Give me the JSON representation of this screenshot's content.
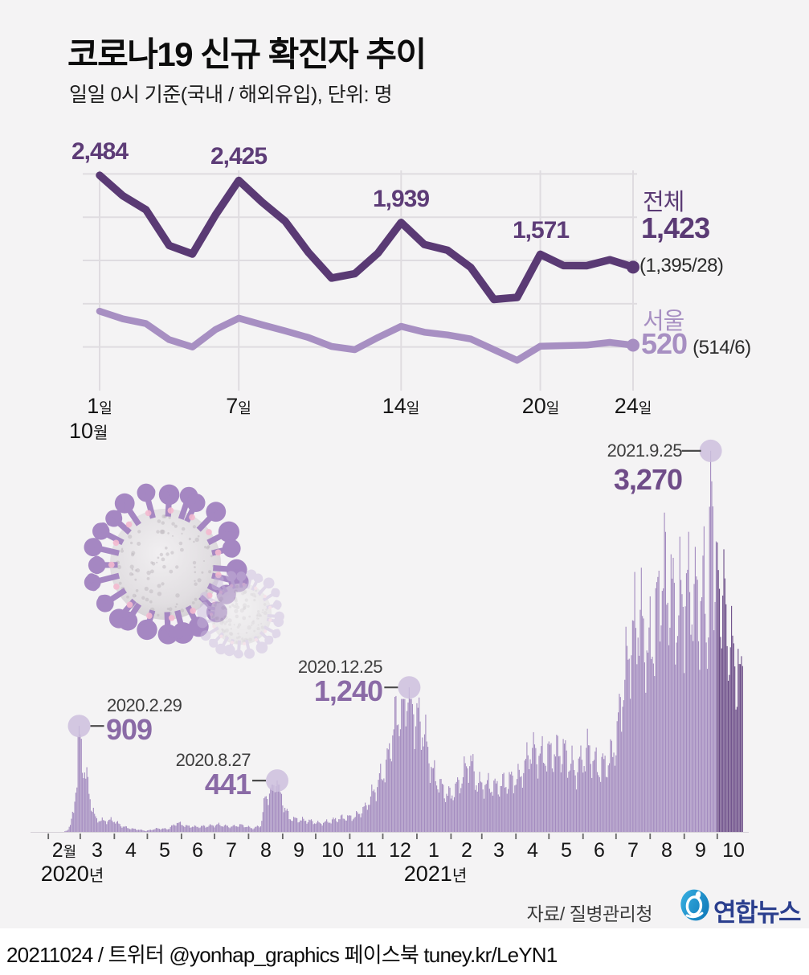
{
  "title": "코로나19 신규 확진자 추이",
  "subtitle": "일일 0시 기준(국내 / 해외유입), 단위: 명",
  "source": "자료/ 질병관리청",
  "logo_text": "연합뉴스",
  "footer": "20211024 / 트위터 @yonhap_graphics  페이스북 tuney.kr/LeYN1",
  "colors": {
    "background": "#f4f3f4",
    "total_line": "#5a3a74",
    "seoul_line": "#a78fc2",
    "peak_label": "#5d3c77",
    "bar": "#a38bbf",
    "bar_highlight": "#6b4c87",
    "grid": "#dfdce0",
    "annotation_circle": "#ccbedd",
    "annotation_number": "#8a6aa6",
    "annotation_number_dark": "#6f4c88",
    "logo_blue": "#1b9ad8",
    "logo_text_blue": "#2b3f8e"
  },
  "chart_data": [
    {
      "type": "line",
      "title": "코로나19 신규 확진자 추이 (10월 일별)",
      "month_label": "10월",
      "x": [
        1,
        2,
        3,
        4,
        5,
        6,
        7,
        8,
        9,
        10,
        11,
        12,
        13,
        14,
        15,
        16,
        17,
        18,
        19,
        20,
        21,
        22,
        23,
        24
      ],
      "x_tick_suffix": "일",
      "x_ticks": [
        {
          "day": 1,
          "label": "1",
          "suffix": "일"
        },
        {
          "day": 7,
          "label": "7",
          "suffix": "일"
        },
        {
          "day": 14,
          "label": "14",
          "suffix": "일"
        },
        {
          "day": 20,
          "label": "20",
          "suffix": "일"
        },
        {
          "day": 24,
          "label": "24",
          "suffix": "일"
        }
      ],
      "y_gridlines": [
        500,
        1000,
        1500,
        2000,
        2500
      ],
      "ylim": [
        0,
        2600
      ],
      "series": [
        {
          "name": "전체",
          "color": "#5a3a74",
          "values": [
            2484,
            2247,
            2086,
            1673,
            1575,
            2028,
            2425,
            2175,
            1953,
            1594,
            1297,
            1347,
            1584,
            1939,
            1684,
            1618,
            1420,
            1050,
            1073,
            1571,
            1441,
            1440,
            1508,
            1423
          ],
          "end_value_label": "1,423",
          "end_breakdown": "(1,395/28)"
        },
        {
          "name": "서울",
          "color": "#a78fc2",
          "values": [
            913,
            825,
            770,
            584,
            500,
            702,
            832,
            757,
            686,
            609,
            506,
            469,
            609,
            739,
            671,
            639,
            593,
            469,
            346,
            509,
            516,
            522,
            553,
            520
          ],
          "end_value_label": "520",
          "end_breakdown": "(514/6)"
        }
      ],
      "peak_labels": [
        {
          "day": 1,
          "label": "2,484"
        },
        {
          "day": 7,
          "label": "2,425"
        },
        {
          "day": 14,
          "label": "1,939"
        },
        {
          "day": 20,
          "label": "1,571"
        }
      ]
    },
    {
      "type": "bar",
      "title": "일별 신규 확진자 2020.1 ~ 2021.10 (추정 보간값 포함)",
      "start_date": "2020-01-18",
      "end_date": "2021-10-24",
      "total_days": 646,
      "highlight_start_index": 622,
      "knots": [
        [
          0,
          1
        ],
        [
          10,
          1
        ],
        [
          14,
          1
        ],
        [
          28,
          2
        ],
        [
          31,
          12
        ],
        [
          34,
          60
        ],
        [
          37,
          180
        ],
        [
          40,
          500
        ],
        [
          42,
          909
        ],
        [
          44,
          700
        ],
        [
          47,
          520
        ],
        [
          50,
          400
        ],
        [
          53,
          242
        ],
        [
          57,
          110
        ],
        [
          64,
          93
        ],
        [
          73,
          101
        ],
        [
          80,
          53
        ],
        [
          88,
          30
        ],
        [
          96,
          20
        ],
        [
          103,
          9
        ],
        [
          113,
          29
        ],
        [
          123,
          26
        ],
        [
          131,
          79
        ],
        [
          139,
          51
        ],
        [
          149,
          43
        ],
        [
          159,
          51
        ],
        [
          169,
          61
        ],
        [
          179,
          44
        ],
        [
          189,
          58
        ],
        [
          200,
          31
        ],
        [
          207,
          54
        ],
        [
          211,
          279
        ],
        [
          214,
          320
        ],
        [
          218,
          397
        ],
        [
          222,
          441
        ],
        [
          225,
          323
        ],
        [
          228,
          235
        ],
        [
          233,
          119
        ],
        [
          241,
          106
        ],
        [
          251,
          93
        ],
        [
          261,
          73
        ],
        [
          271,
          95
        ],
        [
          281,
          119
        ],
        [
          292,
          126
        ],
        [
          302,
          205
        ],
        [
          312,
          382
        ],
        [
          322,
          583
        ],
        [
          329,
          950
        ],
        [
          335,
          1062
        ],
        [
          342,
          1240
        ],
        [
          347,
          1029
        ],
        [
          355,
          870
        ],
        [
          363,
          513
        ],
        [
          373,
          354
        ],
        [
          380,
          305
        ],
        [
          389,
          444
        ],
        [
          397,
          621
        ],
        [
          404,
          406
        ],
        [
          412,
          398
        ],
        [
          422,
          382
        ],
        [
          432,
          428
        ],
        [
          443,
          473
        ],
        [
          453,
          698
        ],
        [
          463,
          644
        ],
        [
          473,
          676
        ],
        [
          483,
          681
        ],
        [
          493,
          516
        ],
        [
          504,
          695
        ],
        [
          514,
          545
        ],
        [
          524,
          614
        ],
        [
          530,
          762
        ],
        [
          536,
          1212
        ],
        [
          543,
          1615
        ],
        [
          551,
          1842
        ],
        [
          560,
          1539
        ],
        [
          567,
          1823
        ],
        [
          571,
          2222
        ],
        [
          580,
          2052
        ],
        [
          585,
          1882
        ],
        [
          592,
          2025
        ],
        [
          599,
          2049
        ],
        [
          606,
          1943
        ],
        [
          610,
          2080
        ],
        [
          613,
          1720
        ],
        [
          615,
          2434
        ],
        [
          616,
          3270
        ],
        [
          617,
          2771
        ],
        [
          619,
          2289
        ],
        [
          621,
          2564
        ],
        [
          645,
          1423
        ]
      ],
      "annotations": [
        {
          "date_label": "2020.2.29",
          "value_label": "909",
          "value": 909,
          "day_index": 42,
          "text_side": "right",
          "layout": "number_on_dash",
          "number_color": "#8a6aa6"
        },
        {
          "date_label": "2020.8.27",
          "value_label": "441",
          "value": 441,
          "day_index": 222,
          "text_side": "left",
          "layout": "number_on_dash",
          "number_color": "#8a6aa6"
        },
        {
          "date_label": "2020.12.25",
          "value_label": "1,240",
          "value": 1240,
          "day_index": 342,
          "text_side": "left",
          "layout": "number_on_dash",
          "number_color": "#8a6aa6"
        },
        {
          "date_label": "2021.9.25",
          "value_label": "3,270",
          "value": 3270,
          "day_index": 616,
          "text_side": "left",
          "layout": "date_on_dash",
          "number_color": "#6f4c88"
        }
      ],
      "month_tick_day_indices": [
        14,
        43,
        74,
        104,
        135,
        165,
        196,
        227,
        257,
        288,
        318,
        349,
        380,
        408,
        439,
        469,
        500,
        530,
        561,
        592,
        622
      ],
      "month_labels": [
        "2월",
        "3",
        "4",
        "5",
        "6",
        "7",
        "8",
        "9",
        "10",
        "11",
        "12",
        "1",
        "2",
        "3",
        "4",
        "5",
        "6",
        "7",
        "8",
        "9",
        "10"
      ],
      "year_labels": [
        {
          "label": "2020",
          "suffix": "년",
          "anchor_day_index": 36
        },
        {
          "label": "2021",
          "suffix": "년",
          "anchor_day_index": 366
        }
      ]
    }
  ]
}
